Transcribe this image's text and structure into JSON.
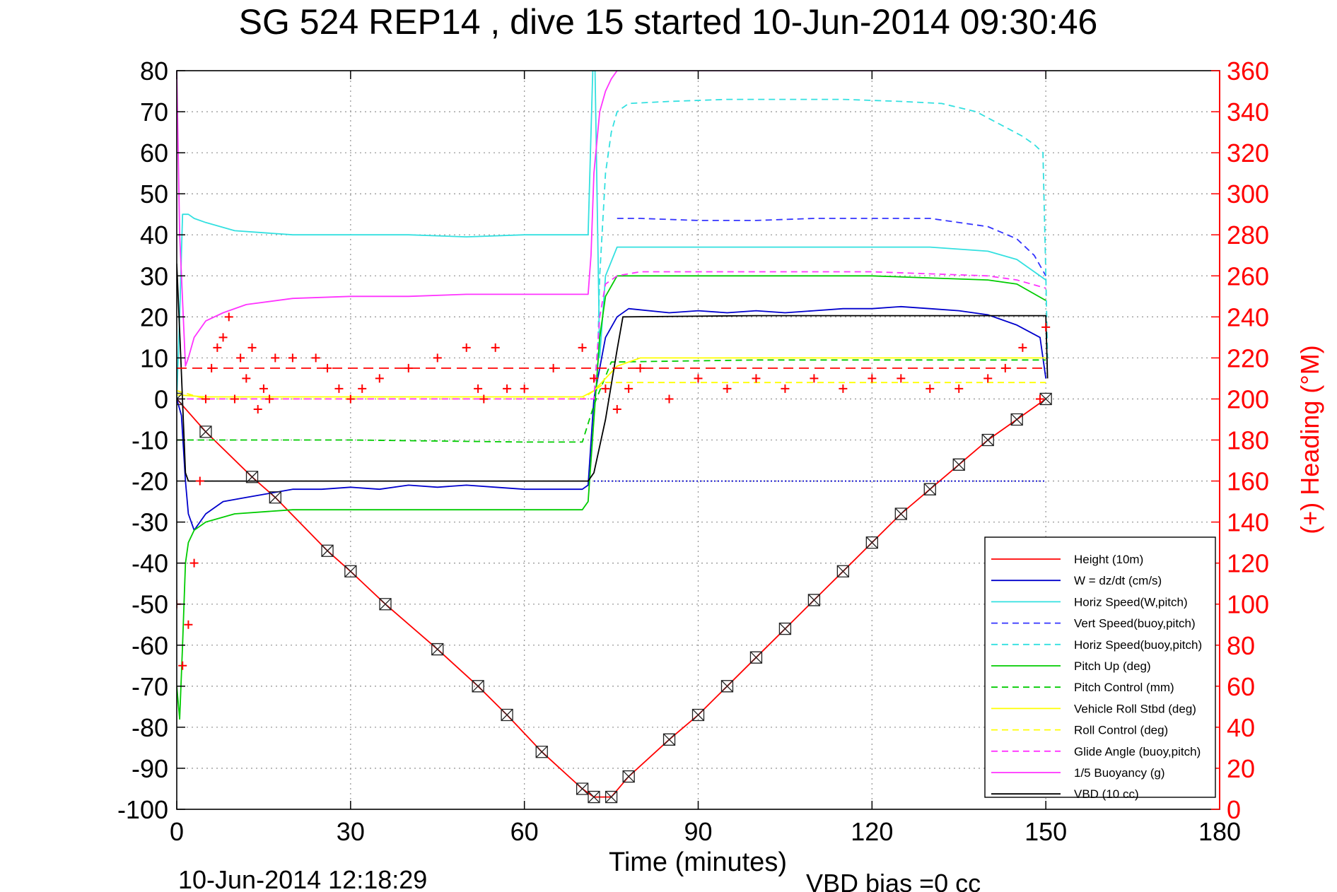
{
  "page": {
    "title": "SG 524   REP14  , dive 15 started 10-Jun-2014 09:30:46",
    "footer_left": "10-Jun-2014 12:18:29",
    "footer_right": "VBD bias =0 cc"
  },
  "chart_data": {
    "type": "line",
    "title": "SG 524   REP14  , dive 15 started 10-Jun-2014 09:30:46",
    "xlabel": "Time (minutes)",
    "ylabel": "",
    "ylabel_right": "(+) Heading (°M)",
    "xlim": [
      0,
      180
    ],
    "ylim": [
      -100,
      80
    ],
    "ylim_right": [
      0,
      360
    ],
    "xticks": [
      0,
      30,
      60,
      90,
      120,
      150,
      180
    ],
    "yticks": [
      80,
      70,
      60,
      50,
      40,
      30,
      20,
      10,
      0,
      -10,
      -20,
      -30,
      -40,
      -50,
      -60,
      -70,
      -80,
      -90,
      -100
    ],
    "yticks_right": [
      360,
      340,
      320,
      300,
      280,
      260,
      240,
      220,
      200,
      180,
      160,
      140,
      120,
      100,
      80,
      60,
      40,
      20,
      0
    ],
    "grid": true,
    "legend_position": "bottom-right",
    "colors": {
      "height": "#ff0000",
      "w": "#0000cc",
      "horiz_w": "#33e0e0",
      "vert_buoy": "#3333ff",
      "horiz_buoy": "#33e0e0",
      "pitch": "#00cc00",
      "pitch_control": "#00cc00",
      "roll": "#ffff00",
      "roll_control": "#ffff00",
      "glide": "#ff33ff",
      "buoyancy": "#ff33ff",
      "vbd": "#000000",
      "heading": "#ff0000",
      "right_axis": "#ff0000"
    },
    "series": [
      {
        "name": "Height (10m)",
        "key": "height",
        "color": "#ff0000",
        "style": "solid",
        "x": [
          0,
          5,
          13,
          17,
          26,
          30,
          36,
          45,
          52,
          57,
          63,
          70,
          72,
          75,
          78,
          85,
          90,
          95,
          100,
          105,
          110,
          115,
          120,
          125,
          130,
          135,
          140,
          145,
          150
        ],
        "y": [
          0,
          -8,
          -19,
          -24,
          -37,
          -42,
          -50,
          -61,
          -70,
          -77,
          -86,
          -95,
          -97,
          -97,
          -92,
          -83,
          -77,
          -70,
          -63,
          -56,
          -49,
          -42,
          -35,
          -28,
          -22,
          -16,
          -10,
          -5,
          0
        ]
      },
      {
        "name": "W = dz/dt (cm/s)",
        "key": "w",
        "color": "#0000cc",
        "style": "solid",
        "x": [
          0,
          0.8,
          1.5,
          2,
          3,
          5,
          8,
          12,
          16,
          20,
          25,
          30,
          35,
          40,
          45,
          50,
          55,
          60,
          65,
          70,
          71,
          72,
          74,
          76,
          78,
          85,
          90,
          95,
          100,
          105,
          110,
          115,
          120,
          125,
          130,
          135,
          140,
          145,
          149,
          150
        ],
        "y": [
          0,
          -4,
          -20,
          -28,
          -32,
          -28,
          -25,
          -24,
          -23,
          -22,
          -22,
          -21.5,
          -22,
          -21,
          -21.5,
          -21,
          -21.5,
          -22,
          -22,
          -22,
          -21,
          0,
          15,
          20,
          22,
          21,
          21.5,
          21,
          21.5,
          21,
          21.5,
          22,
          22,
          22.5,
          22,
          21.5,
          20.5,
          18,
          15,
          5
        ]
      },
      {
        "name": "Horiz Speed(W,pitch)",
        "key": "horiz_w",
        "color": "#33e0e0",
        "style": "solid",
        "x": [
          0,
          0.5,
          1,
          1.5,
          2,
          3,
          5,
          10,
          20,
          30,
          40,
          50,
          60,
          70,
          71,
          71.8,
          72.2,
          73,
          74,
          76,
          80,
          90,
          100,
          110,
          120,
          130,
          140,
          145,
          148,
          150
        ],
        "y": [
          0,
          20,
          45,
          45,
          45,
          44,
          43,
          41,
          40,
          40,
          40,
          39.5,
          40,
          40,
          40,
          80,
          80,
          10,
          30,
          37,
          37,
          37,
          37,
          37,
          37,
          37,
          36,
          34,
          31,
          29
        ]
      },
      {
        "name": "Vert Speed(buoy,pitch)",
        "key": "vert_buoy",
        "color": "#3333ff",
        "style": "dashed",
        "x": [
          76,
          80,
          90,
          100,
          110,
          120,
          130,
          140,
          145,
          148,
          150
        ],
        "y": [
          44,
          44,
          43.5,
          43.5,
          44,
          44,
          44,
          42,
          39,
          35,
          30
        ]
      },
      {
        "name": "Horiz Speed(buoy,pitch)",
        "key": "horiz_buoy",
        "color": "#33e0e0",
        "style": "dashed",
        "x": [
          72.5,
          73,
          74,
          75,
          76,
          78,
          85,
          95,
          105,
          115,
          125,
          132,
          138,
          142,
          146,
          148,
          149.5,
          150,
          150.3
        ],
        "y": [
          2,
          30,
          55,
          65,
          70,
          72,
          72.5,
          73,
          73,
          73,
          72.5,
          72,
          70,
          67,
          64,
          62,
          60,
          30,
          10
        ]
      },
      {
        "name": "Pitch Up (deg)",
        "key": "pitch",
        "color": "#00cc00",
        "style": "solid",
        "x": [
          0,
          0.5,
          1,
          1.5,
          2,
          3,
          5,
          10,
          20,
          30,
          40,
          50,
          60,
          70,
          71,
          72,
          73,
          74,
          76,
          80,
          100,
          120,
          140,
          145,
          150
        ],
        "y": [
          -70,
          -78,
          -60,
          -40,
          -35,
          -32,
          -30,
          -28,
          -27,
          -27,
          -27,
          -27,
          -27,
          -27,
          -25,
          -5,
          15,
          25,
          30,
          30,
          30,
          30,
          29,
          28,
          24
        ]
      },
      {
        "name": "Pitch Control (mm)",
        "key": "pitch_control",
        "color": "#00cc00",
        "style": "dashed",
        "x": [
          0,
          5,
          10,
          30,
          60,
          70,
          72,
          75,
          100,
          120,
          140,
          150
        ],
        "y": [
          -10,
          -10,
          -10,
          -10,
          -10.5,
          -10.5,
          -1.5,
          9,
          9.5,
          9.5,
          9.5,
          9.5
        ]
      },
      {
        "name": "Vehicle Roll Stbd (deg)",
        "key": "roll",
        "color": "#ffff00",
        "style": "solid",
        "x": [
          0,
          5,
          10,
          20,
          30,
          40,
          50,
          60,
          70,
          72,
          74,
          76,
          80,
          90,
          100,
          110,
          120,
          130,
          140,
          145,
          150
        ],
        "y": [
          1,
          0.5,
          0.5,
          0.5,
          0.5,
          0.5,
          0.5,
          0.5,
          0.5,
          2,
          5,
          8,
          10,
          10,
          10,
          10,
          10,
          10,
          10,
          10,
          10
        ]
      },
      {
        "name": "Roll Control (deg)",
        "key": "roll_control",
        "color": "#ffff00",
        "style": "dashed",
        "x": [
          0,
          5,
          10,
          30,
          60,
          70,
          72,
          74,
          76,
          100,
          120,
          140,
          150
        ],
        "y": [
          2,
          0,
          0,
          0,
          0,
          0,
          2,
          4,
          4,
          4,
          4,
          4,
          4
        ]
      },
      {
        "name": "Glide Angle (buoy,pitch)",
        "key": "glide",
        "color": "#ff33ff",
        "style": "dashed",
        "x": [
          0,
          10,
          30,
          60,
          70,
          72,
          73,
          74,
          76,
          80,
          100,
          120,
          140,
          145,
          150
        ],
        "y": [
          0,
          0,
          0,
          0,
          0,
          0,
          20,
          28,
          30,
          31,
          31,
          31,
          30,
          29,
          27
        ]
      },
      {
        "name": "1/5 Buoyancy (g)",
        "key": "buoyancy",
        "color": "#ff33ff",
        "style": "solid",
        "x": [
          0,
          0.5,
          1.5,
          2,
          3,
          5,
          8,
          12,
          20,
          30,
          40,
          50,
          60,
          70,
          71,
          71.5,
          72,
          73,
          74,
          75,
          76,
          77,
          150
        ],
        "y": [
          80,
          40,
          8,
          10,
          15,
          19,
          21,
          23,
          24.5,
          25,
          25,
          25.5,
          25.5,
          25.5,
          25.5,
          35,
          55,
          70,
          75,
          78,
          80,
          80,
          80
        ]
      },
      {
        "name": "VBD (10 cc)",
        "key": "vbd",
        "color": "#000000",
        "style": "solid",
        "x": [
          0,
          0.7,
          1.5,
          2,
          10,
          20,
          40,
          60,
          70,
          71,
          72,
          74,
          76,
          77,
          100,
          120,
          140,
          150,
          150.3
        ],
        "y": [
          33,
          10,
          -18,
          -20,
          -20,
          -20,
          -20,
          -20,
          -20,
          -20,
          -18,
          -5,
          12,
          20,
          20.3,
          20.3,
          20.3,
          20.3,
          5
        ]
      },
      {
        "name": "Pitch Control Ref",
        "key": "pitch_ref",
        "color": "#ff0000",
        "style": "dashed-ref",
        "x": [
          0,
          150
        ],
        "y": [
          7.5,
          7.5
        ]
      },
      {
        "name": "VBD Ref",
        "key": "vbd_ref",
        "color": "#0000cc",
        "style": "dotted-ref",
        "x": [
          72,
          150
        ],
        "y": [
          -20,
          -20
        ]
      },
      {
        "name": "Heading",
        "key": "heading",
        "color": "#ff0000",
        "style": "markers",
        "axis": "right",
        "x": [
          0,
          1,
          2,
          3,
          4,
          5,
          6,
          7,
          8,
          9,
          10,
          11,
          12,
          13,
          14,
          15,
          16,
          17,
          20,
          24,
          26,
          28,
          30,
          32,
          35,
          40,
          45,
          50,
          52,
          53,
          55,
          57,
          60,
          65,
          70,
          72,
          74,
          76,
          78,
          80,
          85,
          90,
          95,
          100,
          105,
          110,
          115,
          120,
          125,
          130,
          135,
          140,
          143,
          146,
          149,
          150
        ],
        "y": [
          100,
          70,
          90,
          120,
          160,
          200,
          215,
          225,
          230,
          240,
          200,
          220,
          210,
          225,
          195,
          205,
          200,
          220,
          220,
          220,
          215,
          205,
          200,
          205,
          210,
          215,
          220,
          225,
          205,
          200,
          225,
          205,
          205,
          215,
          225,
          210,
          205,
          195,
          205,
          215,
          200,
          210,
          205,
          210,
          205,
          210,
          205,
          210,
          210,
          205,
          205,
          210,
          215,
          225,
          200,
          235
        ]
      }
    ],
    "legend": [
      "Height (10m)",
      "W = dz/dt (cm/s)",
      "Horiz Speed(W,pitch)",
      "Vert Speed(buoy,pitch)",
      "Horiz Speed(buoy,pitch)",
      "Pitch Up (deg)",
      "Pitch Control (mm)",
      "Vehicle Roll Stbd (deg)",
      "Roll Control (deg)",
      "Glide Angle (buoy,pitch)",
      "1/5 Buoyancy (g)",
      "VBD (10 cc)"
    ],
    "legend_styles": [
      "solid",
      "solid",
      "solid",
      "dashed",
      "dashed",
      "solid",
      "dashed",
      "solid",
      "dashed",
      "dashed",
      "solid",
      "solid"
    ],
    "legend_colors": [
      "#ff0000",
      "#0000cc",
      "#33e0e0",
      "#3333ff",
      "#33e0e0",
      "#00cc00",
      "#00cc00",
      "#ffff00",
      "#ffff00",
      "#ff33ff",
      "#ff33ff",
      "#000000"
    ]
  }
}
